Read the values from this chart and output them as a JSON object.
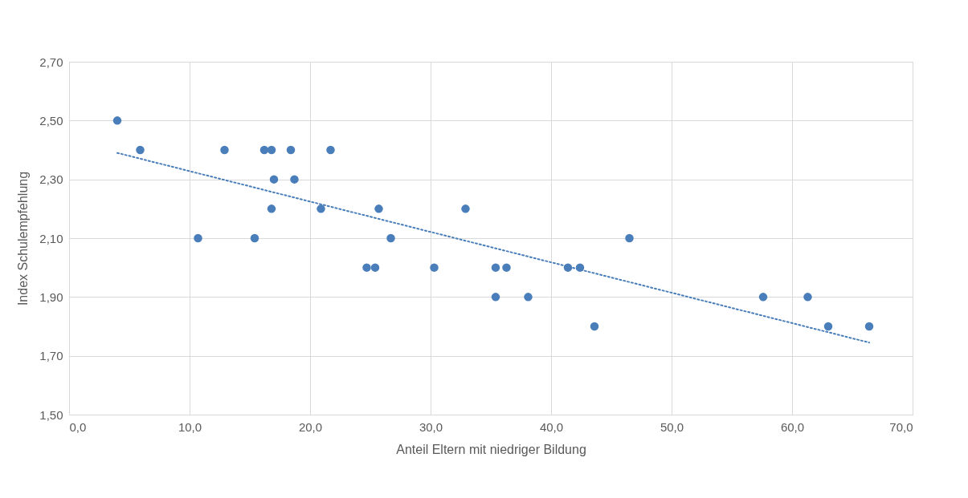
{
  "chart_data": {
    "type": "scatter",
    "xlabel": "Anteil Eltern mit niedriger Bildung",
    "ylabel": "Index Schulempfehlung",
    "x": [
      4.0,
      5.9,
      10.7,
      12.9,
      15.4,
      16.2,
      16.8,
      17.0,
      16.8,
      18.4,
      18.7,
      20.9,
      21.7,
      24.7,
      25.4,
      25.7,
      26.7,
      30.3,
      32.9,
      35.4,
      35.4,
      36.3,
      38.1,
      41.4,
      42.4,
      43.6,
      46.5,
      57.6,
      61.3,
      63.0,
      66.4
    ],
    "series": [
      {
        "type": "scatter",
        "color": "#4a7ebb",
        "marker": "circle",
        "values": [
          2.5,
          2.4,
          2.1,
          2.4,
          2.1,
          2.4,
          2.4,
          2.3,
          2.2,
          2.4,
          2.3,
          2.2,
          2.4,
          2.0,
          2.0,
          2.2,
          2.1,
          2.0,
          2.2,
          2.0,
          1.9,
          2.0,
          1.9,
          2.0,
          2.0,
          1.8,
          2.1,
          1.9,
          1.9,
          1.8,
          1.8
        ]
      },
      {
        "type": "line",
        "color": "#4a7ebb",
        "line_style": "dotted",
        "marker": "none",
        "x": [
          4.0,
          66.4
        ],
        "values": [
          2.39,
          1.745
        ]
      }
    ],
    "xlim": [
      0,
      70
    ],
    "ylim": [
      1.5,
      2.7
    ],
    "xticks": [
      {
        "value": 0,
        "label": "0,0"
      },
      {
        "value": 10,
        "label": "10,0"
      },
      {
        "value": 20,
        "label": "20,0"
      },
      {
        "value": 30,
        "label": "30,0"
      },
      {
        "value": 40,
        "label": "40,0"
      },
      {
        "value": 50,
        "label": "50,0"
      },
      {
        "value": 60,
        "label": "60,0"
      },
      {
        "value": 70,
        "label": "70,0"
      }
    ],
    "yticks": [
      {
        "value": 1.5,
        "label": "1,50"
      },
      {
        "value": 1.7,
        "label": "1,70"
      },
      {
        "value": 1.9,
        "label": "1,90"
      },
      {
        "value": 2.1,
        "label": "2,10"
      },
      {
        "value": 2.3,
        "label": "2,30"
      },
      {
        "value": 2.5,
        "label": "2,50"
      },
      {
        "value": 2.7,
        "label": "2,70"
      }
    ],
    "grid": true
  }
}
